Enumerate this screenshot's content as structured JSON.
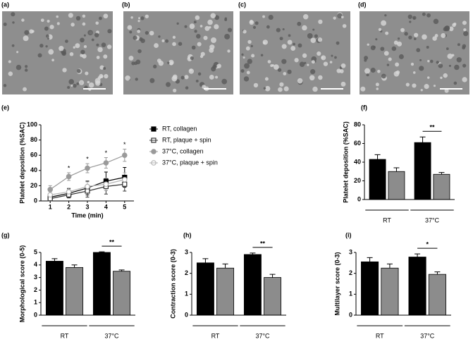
{
  "chart_data": [
    {
      "type": "image",
      "label": "(a)"
    },
    {
      "type": "image",
      "label": "(b)"
    },
    {
      "type": "image",
      "label": "(c)"
    },
    {
      "type": "image",
      "label": "(d)"
    },
    {
      "type": "line",
      "label": "(e)",
      "x": [
        1,
        2,
        3,
        4,
        5
      ],
      "xlim": [
        0.5,
        5.5
      ],
      "xticks": [
        1,
        2,
        3,
        4,
        5
      ],
      "ylim": [
        0,
        100
      ],
      "yticks": [
        0,
        20,
        40,
        60,
        80,
        100
      ],
      "x_label": "Time (min)",
      "y_label": "Platelet deposition (%SAC)",
      "legend": "right",
      "series": [
        {
          "name": "RT, collagen",
          "color": "#000000",
          "marker": "square",
          "filled": true,
          "values": [
            5,
            10,
            17,
            26,
            31
          ],
          "errors": [
            3,
            6,
            9,
            12,
            13
          ]
        },
        {
          "name": "RT, plaque + spin",
          "color": "#333333",
          "marker": "square",
          "filled": false,
          "values": [
            3,
            8,
            13,
            19,
            22
          ],
          "errors": [
            2,
            4,
            8,
            10,
            9
          ]
        },
        {
          "name": "37°C, collagen",
          "color": "#9a9a9a",
          "marker": "circle",
          "filled": true,
          "values": [
            15,
            32,
            43,
            50,
            60
          ],
          "errors": [
            5,
            5,
            6,
            7,
            8
          ]
        },
        {
          "name": "37°C, plaque + spin",
          "color": "#b5b5b5",
          "marker": "circle",
          "filled": false,
          "values": [
            8,
            12,
            19,
            22,
            28
          ],
          "errors": [
            4,
            5,
            6,
            8,
            9
          ]
        }
      ],
      "annotations": [
        {
          "x": 2,
          "text": "*"
        },
        {
          "x": 3,
          "text": "*"
        },
        {
          "x": 4,
          "text": "*"
        },
        {
          "x": 5,
          "text": "*"
        }
      ]
    },
    {
      "type": "bar",
      "label": "(f)",
      "groups": [
        "RT",
        "37°C"
      ],
      "ylim": [
        0,
        80
      ],
      "yticks": [
        0,
        20,
        40,
        60,
        80
      ],
      "y_label": "Platelet deposition (%SAC)",
      "series": [
        {
          "color": "#000000",
          "values": [
            43,
            61
          ],
          "errors": [
            5,
            6
          ]
        },
        {
          "color": "#8c8c8c",
          "values": [
            30,
            27
          ],
          "errors": [
            4,
            2
          ]
        }
      ],
      "annotations": [
        {
          "group": 1,
          "text": "**"
        }
      ]
    },
    {
      "type": "bar",
      "label": "(g)",
      "groups": [
        "RT",
        "37°C"
      ],
      "ylim": [
        0,
        5
      ],
      "yticks": [
        0,
        1,
        2,
        3,
        4,
        5
      ],
      "y_label": "Morphological score (0-5)",
      "series": [
        {
          "color": "#000000",
          "values": [
            4.3,
            5.0
          ],
          "errors": [
            0.2,
            0.05
          ]
        },
        {
          "color": "#8c8c8c",
          "values": [
            3.8,
            3.5
          ],
          "errors": [
            0.2,
            0.1
          ]
        }
      ],
      "annotations": [
        {
          "group": 1,
          "text": "**"
        }
      ]
    },
    {
      "type": "bar",
      "label": "(h)",
      "groups": [
        "RT",
        "37°C"
      ],
      "ylim": [
        0,
        3
      ],
      "yticks": [
        0,
        1,
        2,
        3
      ],
      "y_label": "Contraction score (0-3)",
      "series": [
        {
          "color": "#000000",
          "values": [
            2.5,
            2.9
          ],
          "errors": [
            0.2,
            0.07
          ]
        },
        {
          "color": "#8c8c8c",
          "values": [
            2.25,
            1.8
          ],
          "errors": [
            0.2,
            0.15
          ]
        }
      ],
      "annotations": [
        {
          "group": 1,
          "text": "**"
        }
      ]
    },
    {
      "type": "bar",
      "label": "(i)",
      "groups": [
        "RT",
        "37°C"
      ],
      "ylim": [
        0,
        3
      ],
      "yticks": [
        0,
        1,
        2,
        3
      ],
      "y_label": "Multilayer score (0-3)",
      "series": [
        {
          "color": "#000000",
          "values": [
            2.55,
            2.78
          ],
          "errors": [
            0.2,
            0.15
          ]
        },
        {
          "color": "#8c8c8c",
          "values": [
            2.25,
            1.95
          ],
          "errors": [
            0.2,
            0.12
          ]
        }
      ],
      "annotations": [
        {
          "group": 1,
          "text": "*"
        }
      ]
    }
  ]
}
